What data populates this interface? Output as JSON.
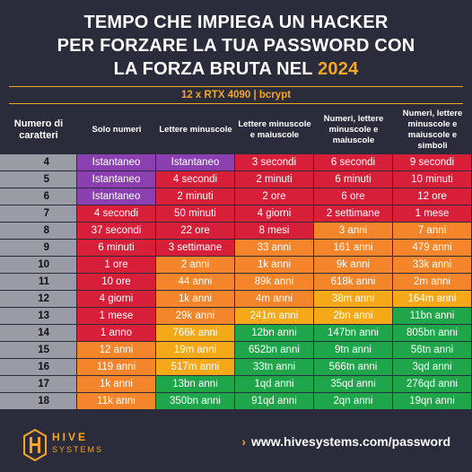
{
  "title": {
    "line1": "TEMPO CHE IMPIEGA UN HACKER",
    "line2": "PER FORZARE LA TUA PASSWORD CON",
    "line3_prefix": "LA FORZA BRUTA NEL ",
    "year": "2024"
  },
  "subtitle": "12 x RTX 4090 | bcrypt",
  "colors": {
    "purple": "#8c3fb0",
    "red": "#d81f3a",
    "orange": "#f5852a",
    "yellow": "#f5a818",
    "green": "#1fa64a",
    "accent": "#f5a623"
  },
  "table": {
    "headers": [
      "Numero di caratteri",
      "Solo numeri",
      "Lettere minuscole",
      "Lettere minuscole e maiuscole",
      "Numeri, lettere minuscole e maiuscole",
      "Numeri, lettere minuscole e maiuscole e simboli"
    ],
    "rows": [
      {
        "n": "4",
        "cells": [
          [
            "Istantaneo",
            "purple"
          ],
          [
            "Istantaneo",
            "purple"
          ],
          [
            "3 secondi",
            "red"
          ],
          [
            "6 secondi",
            "red"
          ],
          [
            "9 secondi",
            "red"
          ]
        ]
      },
      {
        "n": "5",
        "cells": [
          [
            "Istantaneo",
            "purple"
          ],
          [
            "4 secondi",
            "red"
          ],
          [
            "2 minuti",
            "red"
          ],
          [
            "6 minuti",
            "red"
          ],
          [
            "10 minuti",
            "red"
          ]
        ]
      },
      {
        "n": "6",
        "cells": [
          [
            "Istantaneo",
            "purple"
          ],
          [
            "2 minuti",
            "red"
          ],
          [
            "2 ore",
            "red"
          ],
          [
            "6 ore",
            "red"
          ],
          [
            "12 ore",
            "red"
          ]
        ]
      },
      {
        "n": "7",
        "cells": [
          [
            "4 secondi",
            "red"
          ],
          [
            "50 minuti",
            "red"
          ],
          [
            "4 giorni",
            "red"
          ],
          [
            "2 settimane",
            "red"
          ],
          [
            "1 mese",
            "red"
          ]
        ]
      },
      {
        "n": "8",
        "cells": [
          [
            "37 secondi",
            "red"
          ],
          [
            "22 ore",
            "red"
          ],
          [
            "8 mesi",
            "red"
          ],
          [
            "3 anni",
            "orange"
          ],
          [
            "7 anni",
            "orange"
          ]
        ]
      },
      {
        "n": "9",
        "cells": [
          [
            "6 minuti",
            "red"
          ],
          [
            "3 settimane",
            "red"
          ],
          [
            "33 anni",
            "orange"
          ],
          [
            "161 anni",
            "orange"
          ],
          [
            "479 anni",
            "orange"
          ]
        ]
      },
      {
        "n": "10",
        "cells": [
          [
            "1 ore",
            "red"
          ],
          [
            "2 anni",
            "orange"
          ],
          [
            "1k anni",
            "orange"
          ],
          [
            "9k anni",
            "orange"
          ],
          [
            "33k anni",
            "orange"
          ]
        ]
      },
      {
        "n": "11",
        "cells": [
          [
            "10 ore",
            "red"
          ],
          [
            "44 anni",
            "orange"
          ],
          [
            "89k anni",
            "orange"
          ],
          [
            "618k anni",
            "orange"
          ],
          [
            "2m anni",
            "orange"
          ]
        ]
      },
      {
        "n": "12",
        "cells": [
          [
            "4 giorni",
            "red"
          ],
          [
            "1k anni",
            "orange"
          ],
          [
            "4m anni",
            "orange"
          ],
          [
            "38m anni",
            "yellow"
          ],
          [
            "164m anni",
            "yellow"
          ]
        ]
      },
      {
        "n": "13",
        "cells": [
          [
            "1 mese",
            "red"
          ],
          [
            "29k anni",
            "orange"
          ],
          [
            "241m anni",
            "yellow"
          ],
          [
            "2bn anni",
            "yellow"
          ],
          [
            "11bn anni",
            "green"
          ]
        ]
      },
      {
        "n": "14",
        "cells": [
          [
            "1 anno",
            "red"
          ],
          [
            "766k anni",
            "yellow"
          ],
          [
            "12bn anni",
            "green"
          ],
          [
            "147bn anni",
            "green"
          ],
          [
            "805bn anni",
            "green"
          ]
        ]
      },
      {
        "n": "15",
        "cells": [
          [
            "12 anni",
            "orange"
          ],
          [
            "19m anni",
            "yellow"
          ],
          [
            "652bn anni",
            "green"
          ],
          [
            "9tn anni",
            "green"
          ],
          [
            "56tn anni",
            "green"
          ]
        ]
      },
      {
        "n": "16",
        "cells": [
          [
            "119 anni",
            "orange"
          ],
          [
            "517m anni",
            "yellow"
          ],
          [
            "33tn anni",
            "green"
          ],
          [
            "566tn anni",
            "green"
          ],
          [
            "3qd anni",
            "green"
          ]
        ]
      },
      {
        "n": "17",
        "cells": [
          [
            "1k anni",
            "orange"
          ],
          [
            "13bn anni",
            "green"
          ],
          [
            "1qd anni",
            "green"
          ],
          [
            "35qd anni",
            "green"
          ],
          [
            "276qd anni",
            "green"
          ]
        ]
      },
      {
        "n": "18",
        "cells": [
          [
            "11k anni",
            "orange"
          ],
          [
            "350bn anni",
            "green"
          ],
          [
            "91qd anni",
            "green"
          ],
          [
            "2qn anni",
            "green"
          ],
          [
            "19qn anni",
            "green"
          ]
        ]
      }
    ]
  },
  "footer": {
    "brand": "HIVE",
    "brand_sub": "SYSTEMS",
    "url": "www.hivesystems.com/password",
    "logo_icon": "hive-logo-icon",
    "chevron_icon": "chevron-right-icon"
  }
}
